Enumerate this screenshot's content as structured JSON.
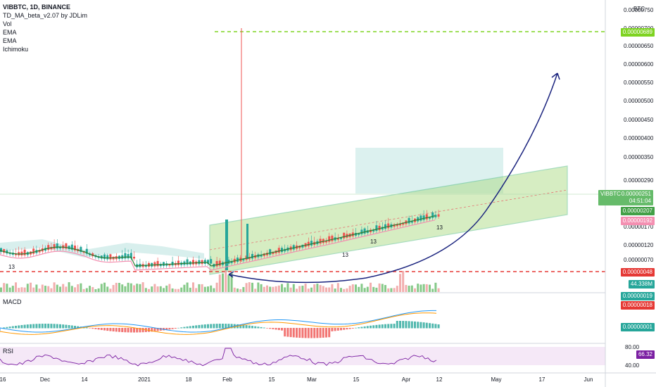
{
  "legend": {
    "title": "VIBBTC, 1D, BINANCE",
    "lines": [
      "TD_MA_beta_v2.07 by JDLim",
      "Vol",
      "EMA",
      "EMA",
      "Ichimoku"
    ]
  },
  "macd_label": "MACD",
  "rsi_label": "RSI",
  "currency_label": "BTC",
  "colors": {
    "up": "#26a69a",
    "down": "#ef5350",
    "channel_fill": "#a5d87a",
    "channel_line": "#3cb371",
    "target_line": "#7ed321",
    "support_line": "#e53935",
    "arrow": "#1a237e",
    "cloud": "#b2dfdb"
  },
  "chart_data": [
    {
      "type": "candlestick",
      "title": "VIBBTC, 1D, BINANCE",
      "y_axis_ticks": [
        "0.00000750",
        "0.00000700",
        "0.00000650",
        "0.00000600",
        "0.00000550",
        "0.00000500",
        "0.00000450",
        "0.00000400",
        "0.00000350",
        "0.00000290",
        "0.00000250",
        "0.00000170",
        "0.00000120",
        "0.00000070"
      ],
      "x_axis_ticks": [
        "16",
        "Dec",
        "14",
        "2021",
        "18",
        "Feb",
        "15",
        "Mar",
        "15",
        "Apr",
        "12",
        "May",
        "17",
        "Jun"
      ],
      "price_tags": [
        {
          "label": "VIBBTC",
          "value": "0.00000251",
          "sub": "04:51:04",
          "color": "#4caf50"
        },
        {
          "value": "0.00000207",
          "color": "#43a047"
        },
        {
          "value": "0.00000192",
          "color": "#f48fb1"
        },
        {
          "value": "0.00000689",
          "color": "#7ed321"
        },
        {
          "value": "0.00000048",
          "color": "#e53935"
        },
        {
          "value": "44.338M",
          "color": "#26a69a"
        }
      ],
      "levels": {
        "target": 6.89e-06,
        "support": 4.8e-07
      },
      "td_counts": [
        "13",
        "13",
        "13",
        "13"
      ]
    },
    {
      "type": "bar",
      "title": "MACD",
      "tags": [
        {
          "value": "0.00000019",
          "color": "#26a69a"
        },
        {
          "value": "0.00000018",
          "color": "#e53935"
        },
        {
          "value": "0.00000001",
          "color": "#26a69a"
        }
      ]
    },
    {
      "type": "line",
      "title": "RSI",
      "y_axis_ticks": [
        "80.00",
        "40.00"
      ],
      "tag": {
        "value": "66.32",
        "color": "#7b1fa2"
      }
    }
  ]
}
